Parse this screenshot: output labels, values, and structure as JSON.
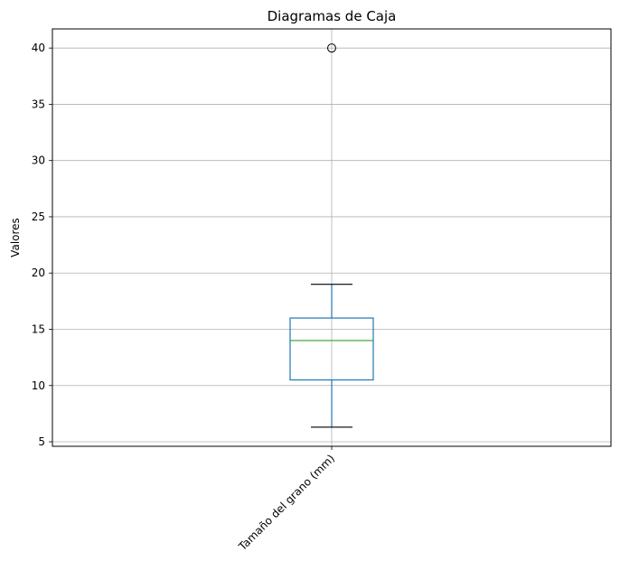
{
  "chart_data": {
    "type": "box",
    "title": "Diagramas de Caja",
    "xlabel": "",
    "ylabel": "Valores",
    "categories": [
      "Tamaño del grano (mm)"
    ],
    "boxes": [
      {
        "whisker_low": 6.3,
        "q1": 10.5,
        "median": 14.0,
        "q3": 16.0,
        "whisker_high": 19.0,
        "outliers": [
          40.0
        ]
      }
    ],
    "ylim": [
      4.6,
      41.7
    ],
    "yticks": [
      5,
      10,
      15,
      20,
      25,
      30,
      35,
      40
    ],
    "grid": true,
    "colors": {
      "box": "#1f77b4",
      "median": "#2ca02c",
      "caps": "#000000",
      "grid": "#b0b0b0",
      "outlier": "#000000"
    }
  }
}
